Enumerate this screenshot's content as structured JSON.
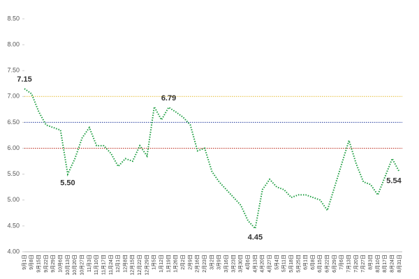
{
  "chart_data": {
    "type": "line",
    "categories": [
      "9月1日",
      "9月8日",
      "9月15日",
      "9月22日",
      "9月29日",
      "10月6日",
      "10月13日",
      "10月20日",
      "10月27日",
      "11月3日",
      "11月10日",
      "11月17日",
      "11月24日",
      "12月1日",
      "12月8日",
      "12月15日",
      "12月22日",
      "12月29日",
      "1月5日",
      "1月12日",
      "1月19日",
      "1月26日",
      "2月2日",
      "2月9日",
      "2月16日",
      "2月23日",
      "3月2日",
      "3月9日",
      "3月16日",
      "3月23日",
      "3月30日",
      "4月6日",
      "4月13日",
      "4月20日",
      "4月27日",
      "5月4日",
      "5月11日",
      "5月18日",
      "5月25日",
      "6月1日",
      "6月8日",
      "6月15日",
      "6月22日",
      "6月29日",
      "7月6日",
      "7月13日",
      "7月20日",
      "7月27日",
      "8月3日",
      "8月10日",
      "8月17日",
      "8月24日",
      "8月31日"
    ],
    "series": [
      {
        "color": "#1a9c3e",
        "values": [
          7.15,
          7.05,
          6.7,
          6.45,
          6.4,
          6.35,
          5.5,
          5.8,
          6.2,
          6.4,
          6.05,
          6.05,
          5.9,
          5.65,
          5.8,
          5.75,
          6.05,
          5.85,
          6.8,
          6.55,
          6.79,
          6.7,
          6.6,
          6.45,
          5.95,
          6.0,
          5.55,
          5.35,
          5.2,
          5.05,
          4.9,
          4.6,
          4.45,
          5.2,
          5.4,
          5.25,
          5.2,
          5.05,
          5.1,
          5.1,
          5.05,
          5.0,
          4.8,
          5.25,
          5.7,
          6.15,
          5.7,
          5.35,
          5.3,
          5.1,
          5.45,
          5.8,
          5.54
        ],
        "value_labels": [
          "7.15",
          null,
          null,
          null,
          null,
          null,
          "5.50",
          null,
          null,
          null,
          null,
          null,
          null,
          null,
          null,
          null,
          null,
          null,
          null,
          null,
          "6.79",
          null,
          null,
          null,
          null,
          null,
          null,
          null,
          null,
          null,
          null,
          null,
          "4.45",
          null,
          null,
          null,
          null,
          null,
          null,
          null,
          null,
          null,
          null,
          null,
          null,
          null,
          null,
          null,
          null,
          null,
          null,
          null,
          "5.54"
        ]
      }
    ],
    "reference_lines": [
      {
        "value": 7,
        "color": "#e8c34a"
      },
      {
        "value": 6.5,
        "color": "#3a4fa8"
      },
      {
        "value": 6,
        "color": "#c0392b"
      }
    ],
    "ylim": [
      4,
      8.5
    ],
    "yticks": [
      {
        "value": 4,
        "label": "4.00"
      },
      {
        "value": 4.5,
        "label": "4.50"
      },
      {
        "value": 5,
        "label": "5.00"
      },
      {
        "value": 5.5,
        "label": "5.50"
      },
      {
        "value": 6,
        "label": "6.00"
      },
      {
        "value": 6.5,
        "label": "6.50"
      },
      {
        "value": 7,
        "label": "7.00"
      },
      {
        "value": 7.5,
        "label": "7.50"
      },
      {
        "value": 8,
        "label": "8.00"
      },
      {
        "value": 8.5,
        "label": "8.50"
      }
    ]
  }
}
